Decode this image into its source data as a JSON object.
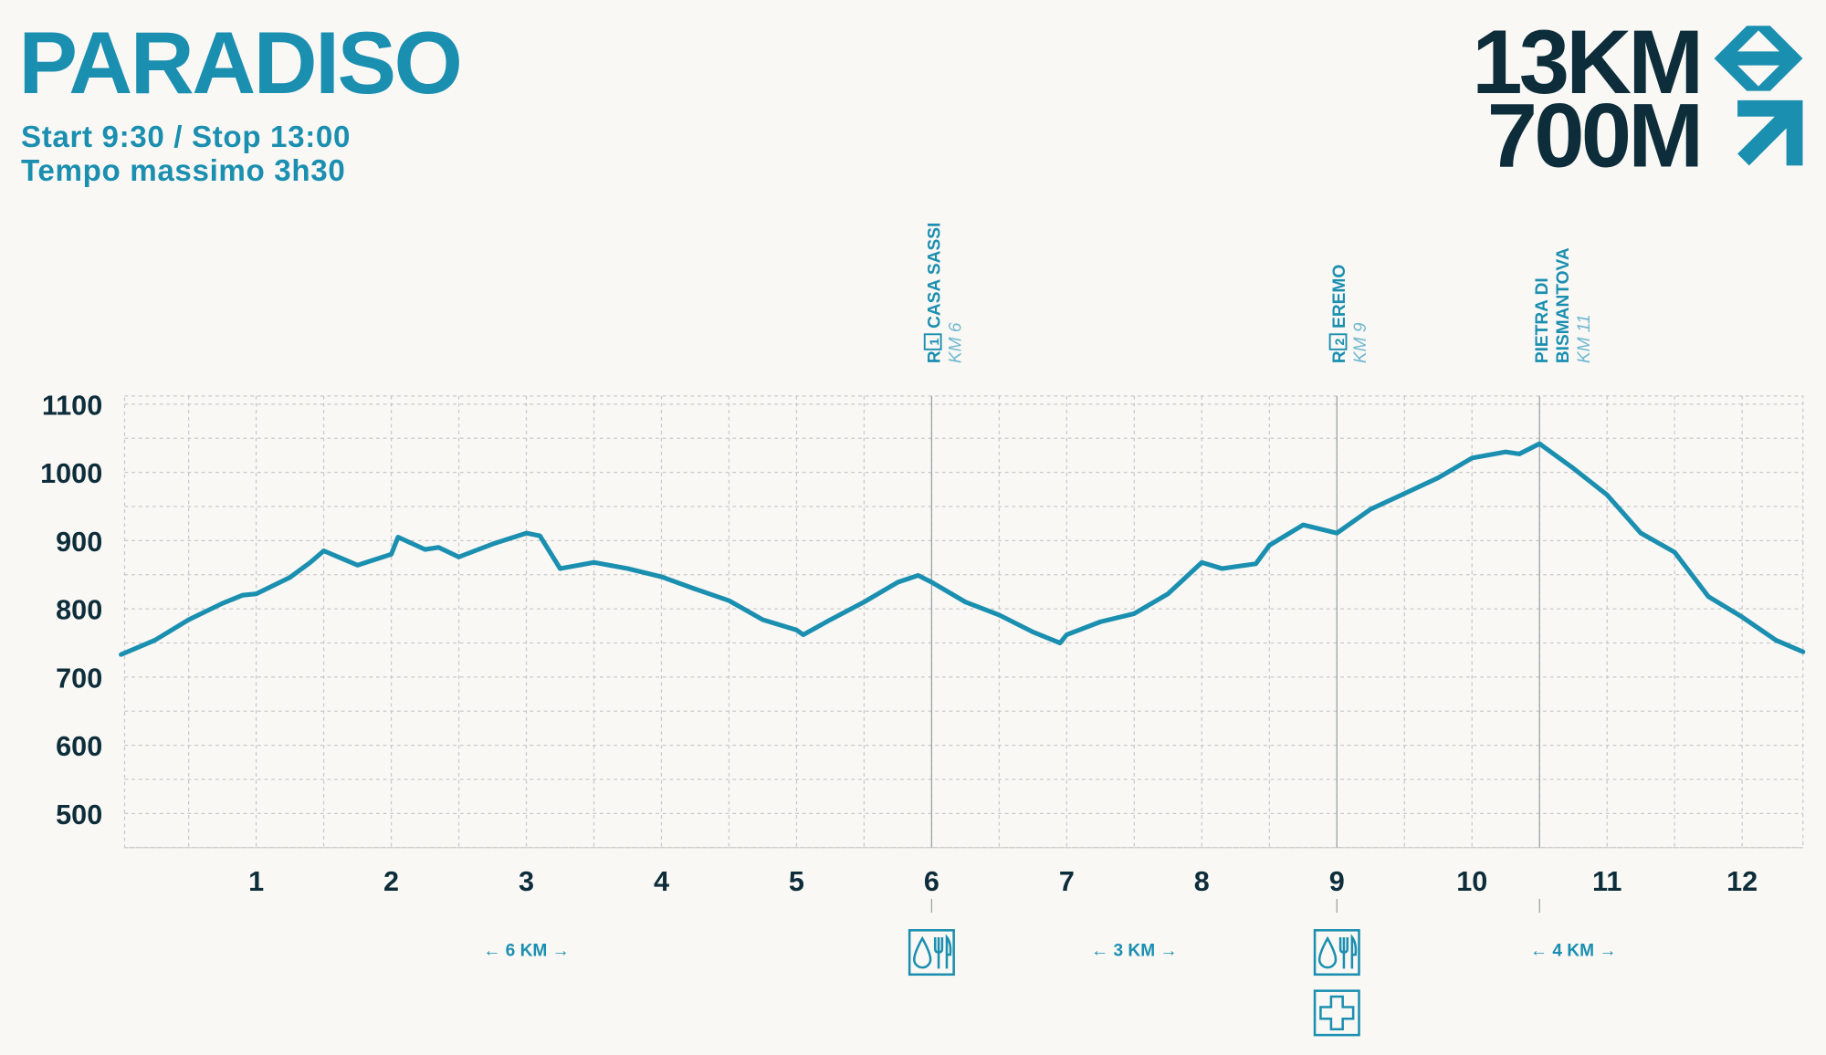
{
  "chart_data": {
    "type": "line",
    "title": "PARADISO",
    "subtitle": [
      "Start 9:30 / Stop 13:00",
      "Tempo massimo 3h30"
    ],
    "distance": "13KM",
    "elevation_gain": "700M",
    "x": [
      0,
      0.25,
      0.5,
      0.75,
      0.9,
      1.0,
      1.25,
      1.4,
      1.5,
      1.75,
      2.0,
      2.05,
      2.25,
      2.35,
      2.5,
      2.75,
      3.0,
      3.1,
      3.25,
      3.5,
      3.75,
      4.0,
      4.25,
      4.5,
      4.75,
      5.0,
      5.05,
      5.25,
      5.5,
      5.75,
      5.9,
      6.0,
      6.25,
      6.5,
      6.75,
      6.95,
      7.0,
      7.25,
      7.5,
      7.75,
      8.0,
      8.15,
      8.4,
      8.5,
      8.75,
      9.0,
      9.25,
      9.5,
      9.75,
      10.0,
      10.25,
      10.35,
      10.5,
      10.75,
      11.0,
      11.25,
      11.5,
      11.75,
      12.0,
      12.25,
      12.45
    ],
    "series": [
      {
        "color": "#1b8fb0",
        "values": [
          733,
          754,
          784,
          808,
          820,
          822,
          846,
          868,
          885,
          864,
          880,
          905,
          887,
          890,
          876,
          895,
          911,
          907,
          859,
          868,
          859,
          847,
          829,
          812,
          784,
          769,
          762,
          784,
          810,
          839,
          849,
          839,
          810,
          791,
          766,
          750,
          762,
          781,
          793,
          822,
          868,
          859,
          866,
          893,
          923,
          911,
          946,
          969,
          992,
          1021,
          1030,
          1027,
          1042,
          1006,
          967,
          911,
          883,
          818,
          788,
          754,
          737
        ]
      }
    ],
    "xlim": [
      0,
      12.45
    ],
    "ylim": [
      450,
      1112
    ],
    "xticks": [
      1,
      2,
      3,
      4,
      5,
      6,
      7,
      8,
      9,
      10,
      11,
      12
    ],
    "yticks": [
      500,
      600,
      700,
      800,
      900,
      1000,
      1100
    ],
    "x_minor_grid": [
      0.5,
      1.5,
      2.5,
      3.5,
      4.5,
      5.5,
      6.5,
      7.5,
      8.5,
      9.5,
      10.5,
      11.5
    ],
    "y_minor_grid": [
      450,
      550,
      650,
      750,
      850,
      950,
      1050
    ],
    "grid": true,
    "waypoints": [
      {
        "x": 6,
        "code": "R",
        "stop": "1",
        "name": [
          "CASA SASSI"
        ],
        "km": "KM 6",
        "services": [
          "refreshment"
        ]
      },
      {
        "x": 9,
        "code": "R",
        "stop": "2",
        "name": [
          "EREMO"
        ],
        "km": "KM 9",
        "services": [
          "refreshment",
          "first-aid"
        ]
      },
      {
        "x": 10.5,
        "name": [
          "PIETRA DI",
          "BISMANTOVA"
        ],
        "km": "KM 11",
        "services": []
      }
    ],
    "segments": [
      {
        "x": 3,
        "label": "← 6 KM →"
      },
      {
        "x": 7.5,
        "label": "← 3 KM →"
      },
      {
        "x": 10.75,
        "label": "← 4 KM →"
      }
    ]
  }
}
